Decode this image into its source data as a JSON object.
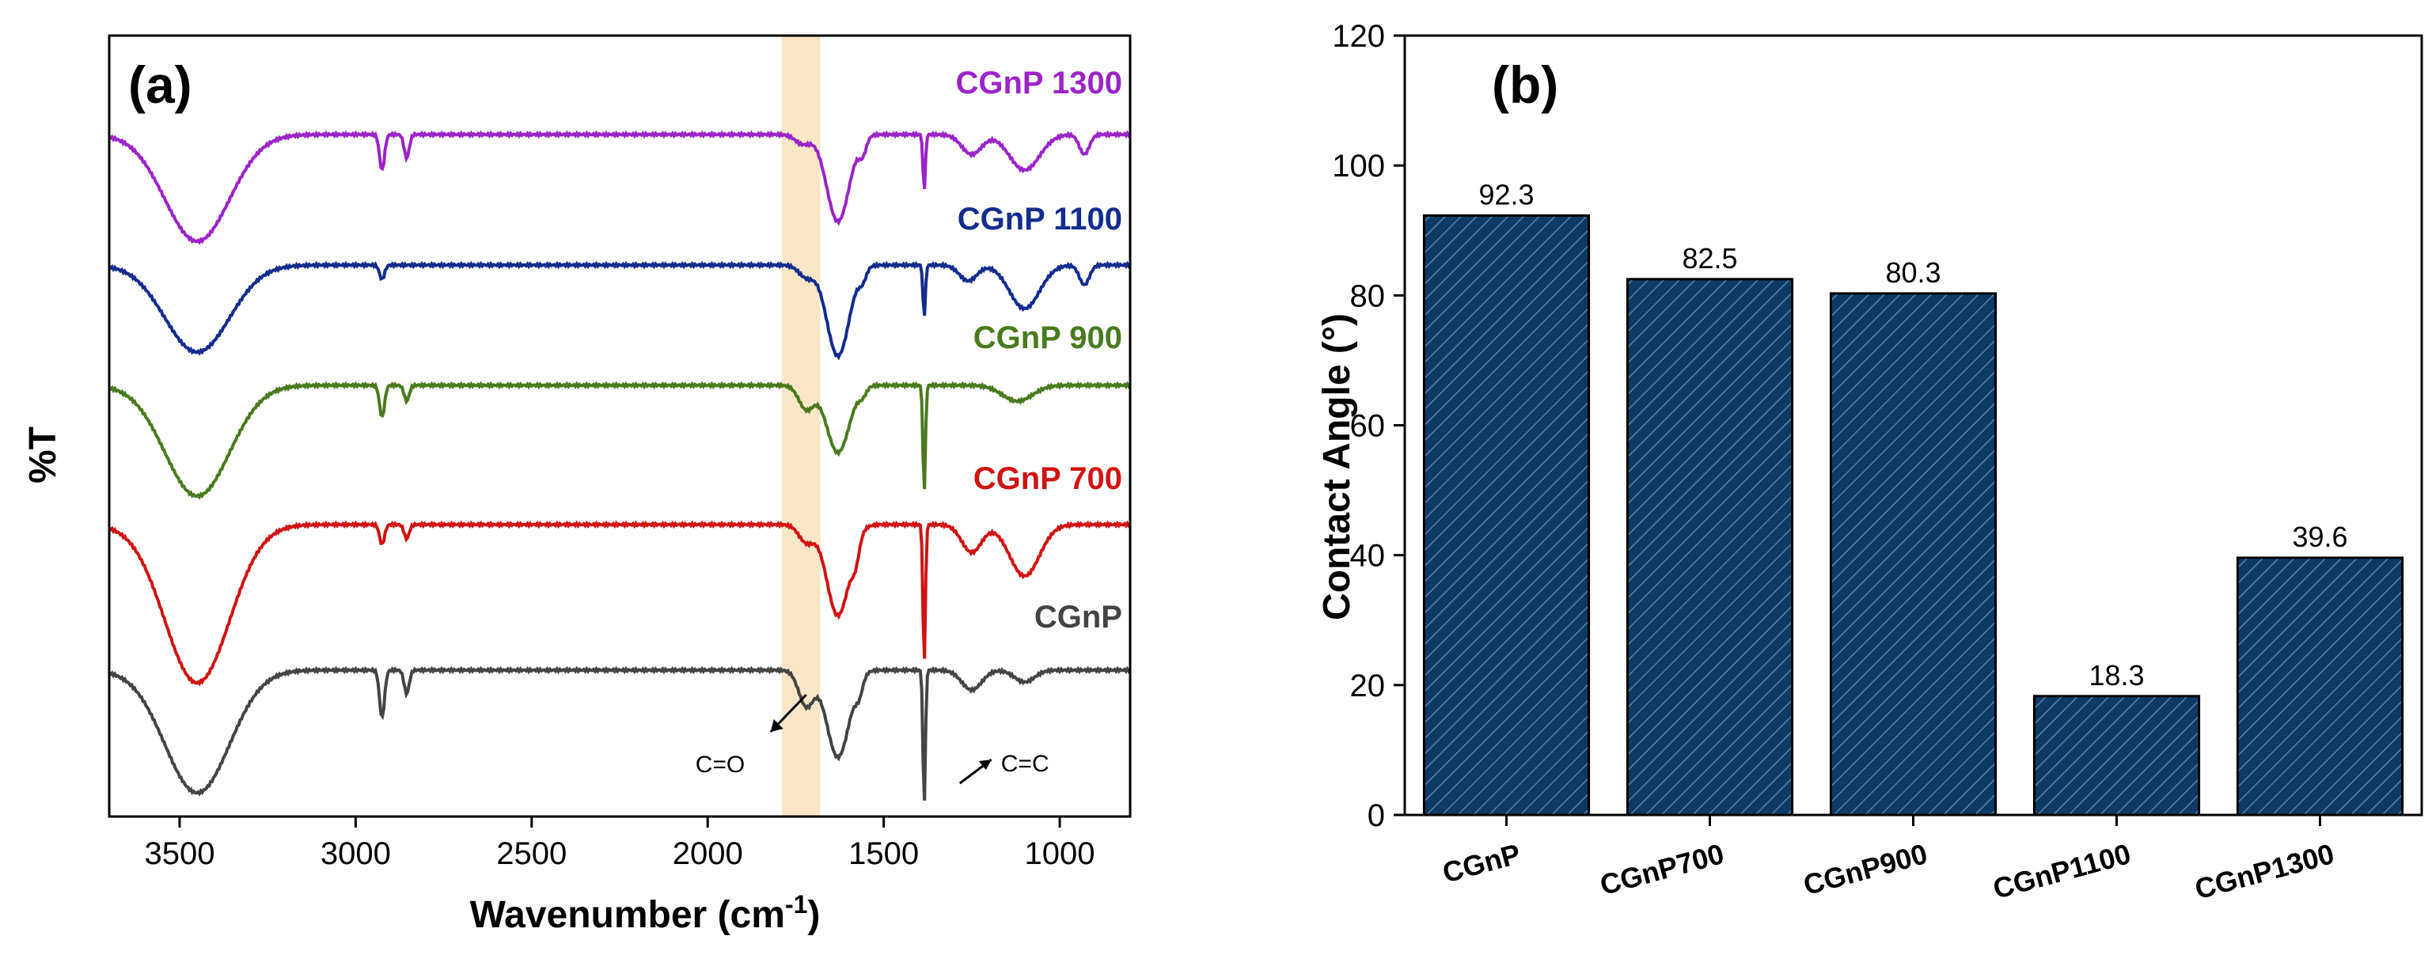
{
  "chart_data": [
    {
      "type": "line",
      "panel": "(a)",
      "xlabel": "Wavenumber (cm",
      "xlabel_sup": "-1",
      "xlabel_close": ")",
      "ylabel": "%T",
      "xlim": [
        3700,
        800
      ],
      "xticks": [
        3500,
        3000,
        2500,
        2000,
        1500,
        1000
      ],
      "highlight_band": [
        1790,
        1680
      ],
      "series": [
        {
          "name": "CGnP 1300",
          "color": "#9b24c8",
          "baseline": 0.0,
          "depth": 0.0,
          "key": "1300"
        },
        {
          "name": "CGnP 1100",
          "color": "#142c8c",
          "baseline": 1.0,
          "depth": 0.0,
          "key": "1100"
        },
        {
          "name": "CGnP 900",
          "color": "#4a7a1e",
          "baseline": 2.0,
          "depth": 0.0,
          "key": "900"
        },
        {
          "name": "CGnP 700",
          "color": "#d01414",
          "baseline": 3.2,
          "depth": 0.0,
          "key": "700"
        },
        {
          "name": "CGnP",
          "color": "#444444",
          "baseline": 4.4,
          "depth": 0.0,
          "key": "cgnp"
        }
      ],
      "annotations": [
        {
          "text": "C=O",
          "x_wavenumber": 1720
        },
        {
          "text": "C=C",
          "x_wavenumber": 1385
        }
      ]
    },
    {
      "type": "bar",
      "panel": "(b)",
      "categories": [
        "CGnP",
        "CGnP700",
        "CGnP900",
        "CGnP1100",
        "CGnP1300"
      ],
      "values": [
        92.3,
        82.5,
        80.3,
        18.3,
        39.6
      ],
      "value_labels": [
        "92.3",
        "82.5",
        "80.3",
        "18.3",
        "39.6"
      ],
      "ylabel": "Contact Angle (°)",
      "ylim": [
        0,
        120
      ],
      "yticks": [
        0,
        20,
        40,
        60,
        80,
        100,
        120
      ],
      "bar_color": "#0d3b66",
      "hatch_color": "#5a7fa6"
    }
  ]
}
